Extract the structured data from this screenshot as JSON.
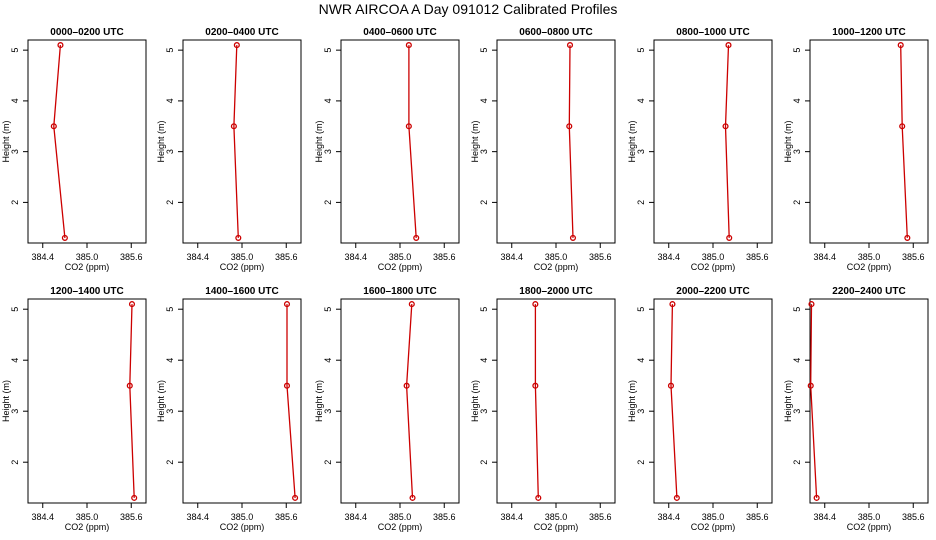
{
  "title": "NWR AIRCOA A  Day 091012  Calibrated Profiles",
  "colors": {
    "series": "#cc0000",
    "axis": "#000000"
  },
  "chart_data": [
    {
      "type": "line",
      "title": "0000–0200 UTC",
      "xlabel": "CO2 (ppm)",
      "ylabel": "Height (m)",
      "xlim": [
        384.2,
        385.8
      ],
      "ylim": [
        1.2,
        5.2
      ],
      "xticks": [
        "384.4",
        "385.0",
        "385.6"
      ],
      "yticks": [
        "2",
        "3",
        "4",
        "5"
      ],
      "series": [
        {
          "x": [
            384.64,
            384.55,
            384.7
          ],
          "y": [
            5.1,
            3.5,
            1.3
          ]
        }
      ]
    },
    {
      "type": "line",
      "title": "0200–0400 UTC",
      "xlabel": "CO2 (ppm)",
      "ylabel": "Height (m)",
      "xlim": [
        384.2,
        385.8
      ],
      "ylim": [
        1.2,
        5.2
      ],
      "xticks": [
        "384.4",
        "385.0",
        "385.6"
      ],
      "yticks": [
        "2",
        "3",
        "4",
        "5"
      ],
      "series": [
        {
          "x": [
            384.93,
            384.89,
            384.95
          ],
          "y": [
            5.1,
            3.5,
            1.3
          ]
        }
      ]
    },
    {
      "type": "line",
      "title": "0400–0600 UTC",
      "xlabel": "CO2 (ppm)",
      "ylabel": "Height (m)",
      "xlim": [
        384.2,
        385.8
      ],
      "ylim": [
        1.2,
        5.2
      ],
      "xticks": [
        "384.4",
        "385.0",
        "385.6"
      ],
      "yticks": [
        "2",
        "3",
        "4",
        "5"
      ],
      "series": [
        {
          "x": [
            385.12,
            385.12,
            385.22
          ],
          "y": [
            5.1,
            3.5,
            1.3
          ]
        }
      ]
    },
    {
      "type": "line",
      "title": "0600–0800 UTC",
      "xlabel": "CO2 (ppm)",
      "ylabel": "Height (m)",
      "xlim": [
        384.2,
        385.8
      ],
      "ylim": [
        1.2,
        5.2
      ],
      "xticks": [
        "384.4",
        "385.0",
        "385.6"
      ],
      "yticks": [
        "2",
        "3",
        "4",
        "5"
      ],
      "series": [
        {
          "x": [
            385.19,
            385.18,
            385.23
          ],
          "y": [
            5.1,
            3.5,
            1.3
          ]
        }
      ]
    },
    {
      "type": "line",
      "title": "0800–1000 UTC",
      "xlabel": "CO2 (ppm)",
      "ylabel": "Height (m)",
      "xlim": [
        384.2,
        385.8
      ],
      "ylim": [
        1.2,
        5.2
      ],
      "xticks": [
        "384.4",
        "385.0",
        "385.6"
      ],
      "yticks": [
        "2",
        "3",
        "4",
        "5"
      ],
      "series": [
        {
          "x": [
            385.21,
            385.17,
            385.22
          ],
          "y": [
            5.1,
            3.5,
            1.3
          ]
        }
      ]
    },
    {
      "type": "line",
      "title": "1000–1200 UTC",
      "xlabel": "CO2 (ppm)",
      "ylabel": "Height (m)",
      "xlim": [
        384.2,
        385.8
      ],
      "ylim": [
        1.2,
        5.2
      ],
      "xticks": [
        "384.4",
        "385.0",
        "385.6"
      ],
      "yticks": [
        "2",
        "3",
        "4",
        "5"
      ],
      "series": [
        {
          "x": [
            385.43,
            385.45,
            385.52
          ],
          "y": [
            5.1,
            3.5,
            1.3
          ]
        }
      ]
    },
    {
      "type": "line",
      "title": "1200–1400 UTC",
      "xlabel": "CO2 (ppm)",
      "ylabel": "Height (m)",
      "xlim": [
        384.2,
        385.8
      ],
      "ylim": [
        1.2,
        5.2
      ],
      "xticks": [
        "384.4",
        "385.0",
        "385.6"
      ],
      "yticks": [
        "2",
        "3",
        "4",
        "5"
      ],
      "series": [
        {
          "x": [
            385.61,
            385.58,
            385.64
          ],
          "y": [
            5.1,
            3.5,
            1.3
          ]
        }
      ]
    },
    {
      "type": "line",
      "title": "1400–1600 UTC",
      "xlabel": "CO2 (ppm)",
      "ylabel": "Height (m)",
      "xlim": [
        384.2,
        385.8
      ],
      "ylim": [
        1.2,
        5.2
      ],
      "xticks": [
        "384.4",
        "385.0",
        "385.6"
      ],
      "yticks": [
        "2",
        "3",
        "4",
        "5"
      ],
      "series": [
        {
          "x": [
            385.61,
            385.61,
            385.72
          ],
          "y": [
            5.1,
            3.5,
            1.3
          ]
        }
      ]
    },
    {
      "type": "line",
      "title": "1600–1800 UTC",
      "xlabel": "CO2 (ppm)",
      "ylabel": "Height (m)",
      "xlim": [
        384.2,
        385.8
      ],
      "ylim": [
        1.2,
        5.2
      ],
      "xticks": [
        "384.4",
        "385.0",
        "385.6"
      ],
      "yticks": [
        "2",
        "3",
        "4",
        "5"
      ],
      "series": [
        {
          "x": [
            385.16,
            385.09,
            385.17
          ],
          "y": [
            5.1,
            3.5,
            1.3
          ]
        }
      ]
    },
    {
      "type": "line",
      "title": "1800–2000 UTC",
      "xlabel": "CO2 (ppm)",
      "ylabel": "Height (m)",
      "xlim": [
        384.2,
        385.8
      ],
      "ylim": [
        1.2,
        5.2
      ],
      "xticks": [
        "384.4",
        "385.0",
        "385.6"
      ],
      "yticks": [
        "2",
        "3",
        "4",
        "5"
      ],
      "series": [
        {
          "x": [
            384.72,
            384.72,
            384.76
          ],
          "y": [
            5.1,
            3.5,
            1.3
          ]
        }
      ]
    },
    {
      "type": "line",
      "title": "2000–2200 UTC",
      "xlabel": "CO2 (ppm)",
      "ylabel": "Height (m)",
      "xlim": [
        384.2,
        385.8
      ],
      "ylim": [
        1.2,
        5.2
      ],
      "xticks": [
        "384.4",
        "385.0",
        "385.6"
      ],
      "yticks": [
        "2",
        "3",
        "4",
        "5"
      ],
      "series": [
        {
          "x": [
            384.45,
            384.43,
            384.51
          ],
          "y": [
            5.1,
            3.5,
            1.3
          ]
        }
      ]
    },
    {
      "type": "line",
      "title": "2200–2400 UTC",
      "xlabel": "CO2 (ppm)",
      "ylabel": "Height (m)",
      "xlim": [
        384.2,
        385.8
      ],
      "ylim": [
        1.2,
        5.2
      ],
      "xticks": [
        "384.4",
        "385.0",
        "385.6"
      ],
      "yticks": [
        "2",
        "3",
        "4",
        "5"
      ],
      "series": [
        {
          "x": [
            384.22,
            384.21,
            384.29
          ],
          "y": [
            5.1,
            3.5,
            1.3
          ]
        }
      ]
    }
  ]
}
